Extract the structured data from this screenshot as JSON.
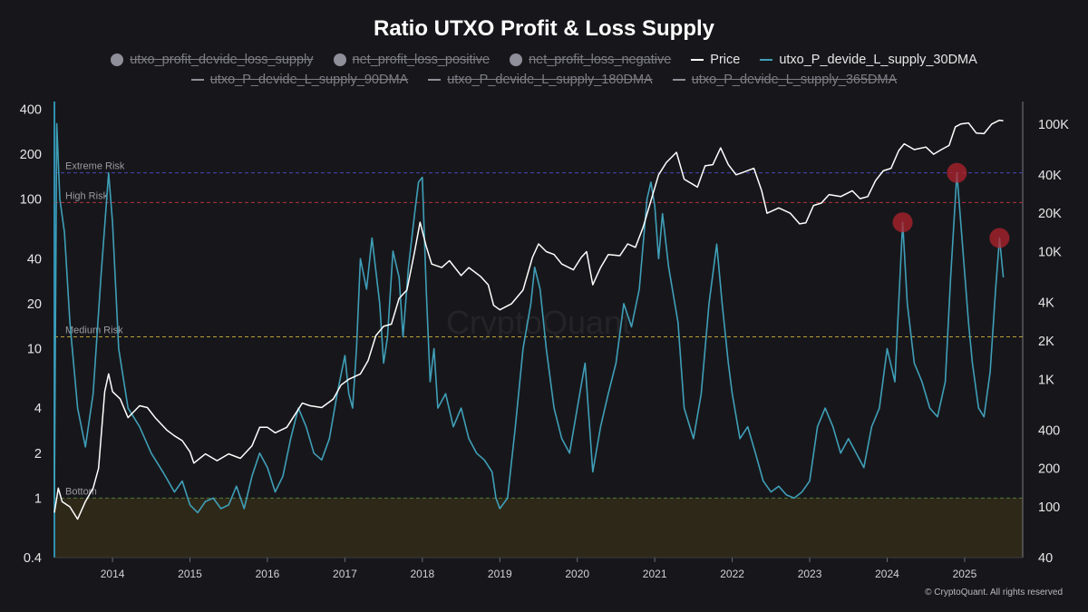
{
  "chart_data": {
    "type": "line",
    "title": "Ratio UTXO Profit & Loss Supply",
    "legend": [
      {
        "name": "utxo_profit_devide_loss_supply",
        "marker": "dot",
        "enabled": false,
        "color": "#8f8f99"
      },
      {
        "name": "net_profit_loss_positive",
        "marker": "dot",
        "enabled": false,
        "color": "#8f8f99"
      },
      {
        "name": "net_profit_loss_negative",
        "marker": "dot",
        "enabled": false,
        "color": "#8f8f99"
      },
      {
        "name": "Price",
        "marker": "line",
        "enabled": true,
        "color": "#ffffff"
      },
      {
        "name": "utxo_P_devide_L_supply_30DMA",
        "marker": "line",
        "enabled": true,
        "color": "#3f9fb8"
      },
      {
        "name": "utxo_P_devide_L_supply_90DMA",
        "marker": "line",
        "enabled": false,
        "color": "#8f8f99"
      },
      {
        "name": "utxo_P_devide_L_supply_180DMA",
        "marker": "line",
        "enabled": false,
        "color": "#8f8f99"
      },
      {
        "name": "utxo_P_devide_L_supply_365DMA",
        "marker": "line",
        "enabled": false,
        "color": "#8f8f99"
      }
    ],
    "x_ticks": [
      "2014",
      "2015",
      "2016",
      "2017",
      "2018",
      "2019",
      "2020",
      "2021",
      "2022",
      "2023",
      "2024",
      "2025"
    ],
    "xlim": [
      2013.25,
      2025.75
    ],
    "y_left": {
      "scale": "log",
      "ylim": [
        0.4,
        450
      ],
      "ticks": [
        "0.4",
        "1",
        "2",
        "4",
        "10",
        "20",
        "40",
        "100",
        "200",
        "400"
      ]
    },
    "y_right": {
      "scale": "log",
      "ylim": [
        40,
        150000
      ],
      "ticks": [
        "40",
        "100",
        "200",
        "400",
        "1K",
        "2K",
        "4K",
        "10K",
        "20K",
        "40K",
        "100K"
      ]
    },
    "zones": [
      {
        "label": "Extreme Risk",
        "value": 150,
        "color": "#4747b8"
      },
      {
        "label": "High Risk",
        "value": 95,
        "color": "#b0353f"
      },
      {
        "label": "Medium Risk",
        "value": 12,
        "color": "#b8a03a"
      },
      {
        "label": "Bottom",
        "value": 1,
        "color": "#4f7a3a"
      }
    ],
    "highlights": [
      {
        "x": 2024.2,
        "value": 70
      },
      {
        "x": 2024.9,
        "value": 150
      },
      {
        "x": 2025.45,
        "value": 55
      }
    ],
    "series": [
      {
        "name": "utxo_P_devide_L_supply_30DMA",
        "axis": "left",
        "color": "#3f9fb8",
        "points": [
          [
            2013.25,
            1
          ],
          [
            2013.28,
            320
          ],
          [
            2013.32,
            100
          ],
          [
            2013.38,
            60
          ],
          [
            2013.45,
            15
          ],
          [
            2013.55,
            4
          ],
          [
            2013.65,
            2.2
          ],
          [
            2013.75,
            5
          ],
          [
            2013.85,
            30
          ],
          [
            2013.95,
            150
          ],
          [
            2014.0,
            70
          ],
          [
            2014.08,
            10
          ],
          [
            2014.2,
            4
          ],
          [
            2014.35,
            3
          ],
          [
            2014.5,
            2
          ],
          [
            2014.65,
            1.5
          ],
          [
            2014.8,
            1.1
          ],
          [
            2014.9,
            1.3
          ],
          [
            2015.0,
            0.9
          ],
          [
            2015.1,
            0.8
          ],
          [
            2015.2,
            0.95
          ],
          [
            2015.3,
            1
          ],
          [
            2015.4,
            0.85
          ],
          [
            2015.5,
            0.9
          ],
          [
            2015.6,
            1.2
          ],
          [
            2015.7,
            0.85
          ],
          [
            2015.8,
            1.4
          ],
          [
            2015.9,
            2
          ],
          [
            2016.0,
            1.6
          ],
          [
            2016.1,
            1.1
          ],
          [
            2016.2,
            1.4
          ],
          [
            2016.3,
            2.5
          ],
          [
            2016.4,
            4
          ],
          [
            2016.5,
            3
          ],
          [
            2016.6,
            2
          ],
          [
            2016.7,
            1.8
          ],
          [
            2016.8,
            2.5
          ],
          [
            2016.9,
            5
          ],
          [
            2017.0,
            9
          ],
          [
            2017.05,
            5
          ],
          [
            2017.1,
            4
          ],
          [
            2017.15,
            10
          ],
          [
            2017.2,
            40
          ],
          [
            2017.28,
            25
          ],
          [
            2017.35,
            55
          ],
          [
            2017.45,
            20
          ],
          [
            2017.5,
            8
          ],
          [
            2017.55,
            12
          ],
          [
            2017.62,
            45
          ],
          [
            2017.7,
            30
          ],
          [
            2017.75,
            12
          ],
          [
            2017.82,
            35
          ],
          [
            2017.9,
            80
          ],
          [
            2017.95,
            130
          ],
          [
            2018.0,
            140
          ],
          [
            2018.05,
            25
          ],
          [
            2018.1,
            6
          ],
          [
            2018.15,
            10
          ],
          [
            2018.2,
            4
          ],
          [
            2018.3,
            5
          ],
          [
            2018.4,
            3
          ],
          [
            2018.5,
            4
          ],
          [
            2018.6,
            2.5
          ],
          [
            2018.7,
            2
          ],
          [
            2018.8,
            1.8
          ],
          [
            2018.9,
            1.5
          ],
          [
            2018.95,
            1
          ],
          [
            2019.0,
            0.85
          ],
          [
            2019.1,
            1
          ],
          [
            2019.2,
            3
          ],
          [
            2019.3,
            10
          ],
          [
            2019.4,
            20
          ],
          [
            2019.45,
            35
          ],
          [
            2019.52,
            25
          ],
          [
            2019.6,
            10
          ],
          [
            2019.7,
            4
          ],
          [
            2019.8,
            2.5
          ],
          [
            2019.9,
            2
          ],
          [
            2020.0,
            4
          ],
          [
            2020.1,
            8
          ],
          [
            2020.2,
            1.5
          ],
          [
            2020.3,
            3
          ],
          [
            2020.4,
            5
          ],
          [
            2020.5,
            8
          ],
          [
            2020.6,
            20
          ],
          [
            2020.7,
            14
          ],
          [
            2020.8,
            25
          ],
          [
            2020.9,
            100
          ],
          [
            2020.95,
            130
          ],
          [
            2021.0,
            90
          ],
          [
            2021.05,
            40
          ],
          [
            2021.1,
            80
          ],
          [
            2021.18,
            35
          ],
          [
            2021.3,
            15
          ],
          [
            2021.38,
            4
          ],
          [
            2021.5,
            2.5
          ],
          [
            2021.6,
            5
          ],
          [
            2021.7,
            20
          ],
          [
            2021.8,
            50
          ],
          [
            2021.87,
            20
          ],
          [
            2021.95,
            8
          ],
          [
            2022.0,
            5
          ],
          [
            2022.1,
            2.5
          ],
          [
            2022.2,
            3
          ],
          [
            2022.3,
            2
          ],
          [
            2022.4,
            1.3
          ],
          [
            2022.5,
            1.1
          ],
          [
            2022.6,
            1.2
          ],
          [
            2022.7,
            1.05
          ],
          [
            2022.8,
            1
          ],
          [
            2022.9,
            1.1
          ],
          [
            2023.0,
            1.3
          ],
          [
            2023.1,
            3
          ],
          [
            2023.2,
            4
          ],
          [
            2023.3,
            3
          ],
          [
            2023.4,
            2
          ],
          [
            2023.5,
            2.5
          ],
          [
            2023.6,
            2
          ],
          [
            2023.7,
            1.6
          ],
          [
            2023.8,
            3
          ],
          [
            2023.9,
            4
          ],
          [
            2024.0,
            10
          ],
          [
            2024.1,
            6
          ],
          [
            2024.2,
            70
          ],
          [
            2024.26,
            20
          ],
          [
            2024.35,
            8
          ],
          [
            2024.45,
            6
          ],
          [
            2024.55,
            4
          ],
          [
            2024.65,
            3.5
          ],
          [
            2024.75,
            6
          ],
          [
            2024.82,
            30
          ],
          [
            2024.9,
            150
          ],
          [
            2024.96,
            60
          ],
          [
            2025.05,
            15
          ],
          [
            2025.1,
            8
          ],
          [
            2025.18,
            4
          ],
          [
            2025.25,
            3.5
          ],
          [
            2025.33,
            7
          ],
          [
            2025.4,
            25
          ],
          [
            2025.45,
            55
          ],
          [
            2025.5,
            30
          ]
        ]
      },
      {
        "name": "Price",
        "axis": "right",
        "color": "#ffffff",
        "points": [
          [
            2013.25,
            90
          ],
          [
            2013.3,
            140
          ],
          [
            2013.35,
            110
          ],
          [
            2013.45,
            100
          ],
          [
            2013.55,
            80
          ],
          [
            2013.65,
            110
          ],
          [
            2013.75,
            140
          ],
          [
            2013.82,
            200
          ],
          [
            2013.9,
            800
          ],
          [
            2013.95,
            1100
          ],
          [
            2014.0,
            800
          ],
          [
            2014.1,
            700
          ],
          [
            2014.2,
            500
          ],
          [
            2014.35,
            620
          ],
          [
            2014.45,
            600
          ],
          [
            2014.55,
            500
          ],
          [
            2014.7,
            400
          ],
          [
            2014.8,
            360
          ],
          [
            2014.9,
            330
          ],
          [
            2015.0,
            270
          ],
          [
            2015.05,
            220
          ],
          [
            2015.2,
            260
          ],
          [
            2015.35,
            230
          ],
          [
            2015.5,
            260
          ],
          [
            2015.65,
            240
          ],
          [
            2015.8,
            300
          ],
          [
            2015.9,
            420
          ],
          [
            2016.0,
            420
          ],
          [
            2016.1,
            380
          ],
          [
            2016.25,
            420
          ],
          [
            2016.45,
            650
          ],
          [
            2016.55,
            620
          ],
          [
            2016.7,
            600
          ],
          [
            2016.85,
            700
          ],
          [
            2016.95,
            900
          ],
          [
            2017.05,
            1000
          ],
          [
            2017.2,
            1100
          ],
          [
            2017.3,
            1400
          ],
          [
            2017.4,
            2200
          ],
          [
            2017.5,
            2600
          ],
          [
            2017.6,
            2700
          ],
          [
            2017.7,
            4300
          ],
          [
            2017.8,
            5000
          ],
          [
            2017.9,
            10000
          ],
          [
            2017.97,
            17000
          ],
          [
            2018.05,
            11000
          ],
          [
            2018.12,
            8000
          ],
          [
            2018.25,
            7500
          ],
          [
            2018.35,
            8500
          ],
          [
            2018.5,
            6500
          ],
          [
            2018.6,
            7500
          ],
          [
            2018.75,
            6400
          ],
          [
            2018.85,
            5500
          ],
          [
            2018.92,
            3800
          ],
          [
            2019.0,
            3500
          ],
          [
            2019.15,
            3900
          ],
          [
            2019.3,
            5000
          ],
          [
            2019.42,
            9000
          ],
          [
            2019.5,
            11500
          ],
          [
            2019.6,
            10000
          ],
          [
            2019.7,
            9500
          ],
          [
            2019.8,
            8000
          ],
          [
            2019.95,
            7200
          ],
          [
            2020.05,
            9000
          ],
          [
            2020.12,
            10000
          ],
          [
            2020.2,
            5500
          ],
          [
            2020.3,
            7500
          ],
          [
            2020.4,
            9500
          ],
          [
            2020.55,
            9300
          ],
          [
            2020.65,
            11500
          ],
          [
            2020.75,
            10800
          ],
          [
            2020.85,
            15500
          ],
          [
            2020.95,
            25000
          ],
          [
            2021.05,
            40000
          ],
          [
            2021.15,
            50000
          ],
          [
            2021.28,
            60000
          ],
          [
            2021.38,
            37000
          ],
          [
            2021.48,
            34000
          ],
          [
            2021.55,
            32000
          ],
          [
            2021.65,
            47000
          ],
          [
            2021.75,
            48000
          ],
          [
            2021.85,
            65000
          ],
          [
            2021.95,
            48000
          ],
          [
            2022.05,
            40000
          ],
          [
            2022.15,
            42000
          ],
          [
            2022.28,
            45000
          ],
          [
            2022.38,
            30000
          ],
          [
            2022.45,
            20000
          ],
          [
            2022.6,
            22000
          ],
          [
            2022.75,
            20000
          ],
          [
            2022.87,
            16500
          ],
          [
            2022.95,
            16800
          ],
          [
            2023.05,
            23000
          ],
          [
            2023.15,
            24000
          ],
          [
            2023.25,
            28000
          ],
          [
            2023.4,
            27000
          ],
          [
            2023.55,
            30000
          ],
          [
            2023.65,
            26000
          ],
          [
            2023.75,
            27000
          ],
          [
            2023.85,
            36000
          ],
          [
            2023.95,
            43000
          ],
          [
            2024.05,
            45000
          ],
          [
            2024.15,
            62000
          ],
          [
            2024.22,
            70000
          ],
          [
            2024.35,
            63000
          ],
          [
            2024.5,
            66000
          ],
          [
            2024.6,
            58000
          ],
          [
            2024.7,
            63000
          ],
          [
            2024.8,
            68000
          ],
          [
            2024.88,
            95000
          ],
          [
            2024.95,
            100000
          ],
          [
            2025.05,
            102000
          ],
          [
            2025.15,
            85000
          ],
          [
            2025.25,
            84000
          ],
          [
            2025.35,
            100000
          ],
          [
            2025.45,
            107000
          ],
          [
            2025.5,
            106000
          ]
        ]
      }
    ],
    "watermark": "CryptoQuant"
  },
  "footer": {
    "copyright": "© CryptoQuant. All rights reserved"
  }
}
